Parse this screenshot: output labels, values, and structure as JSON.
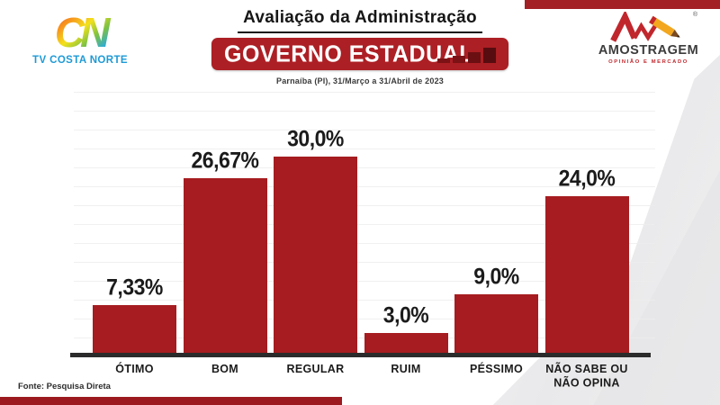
{
  "header": {
    "title": "Avaliação da Administração",
    "banner_label": "GOVERNO ESTADUAL",
    "subtitle": "Parnaíba (PI), 31/Março a 31/Abril de 2023"
  },
  "logos": {
    "tv_costa_norte": {
      "mark": "CN",
      "label": "TV COSTA NORTE"
    },
    "amostragem": {
      "name": "AMOSTRAGEM",
      "tagline": "OPINIÃO E MERCADO",
      "registered": "®"
    }
  },
  "footer": {
    "source": "Fonte: Pesquisa Direta"
  },
  "colors": {
    "bar_red": "#a61c20",
    "banner_red": "#ac1f24",
    "strip_red": "#a32025",
    "axis_black": "#2b2b2b",
    "tv_blue": "#1e9ad6",
    "amostragem_red": "#c0272d"
  },
  "chart_data": {
    "type": "bar",
    "title": "Avaliação da Administração",
    "subtitle": "GOVERNO ESTADUAL",
    "period": "Parnaíba (PI), 31/Março a 31/Abril de 2023",
    "categories": [
      "ÓTIMO",
      "BOM",
      "REGULAR",
      "RUIM",
      "PÉSSIMO",
      "NÃO SABE OU NÃO OPINA"
    ],
    "category_display": [
      "ÓTIMO",
      "BOM",
      "REGULAR",
      "RUIM",
      "PÉSSIMO",
      "NÃO SABE OU\nNÃO OPINA"
    ],
    "values": [
      7.33,
      26.67,
      30.0,
      3.0,
      9.0,
      24.0
    ],
    "value_labels": [
      "7,33%",
      "26,67%",
      "30,0%",
      "3,0%",
      "9,0%",
      "24,0%"
    ],
    "unit": "%",
    "ylim": [
      0,
      32
    ],
    "grid": "horizontal-light",
    "legend": "none",
    "source": "Fonte: Pesquisa Direta"
  }
}
